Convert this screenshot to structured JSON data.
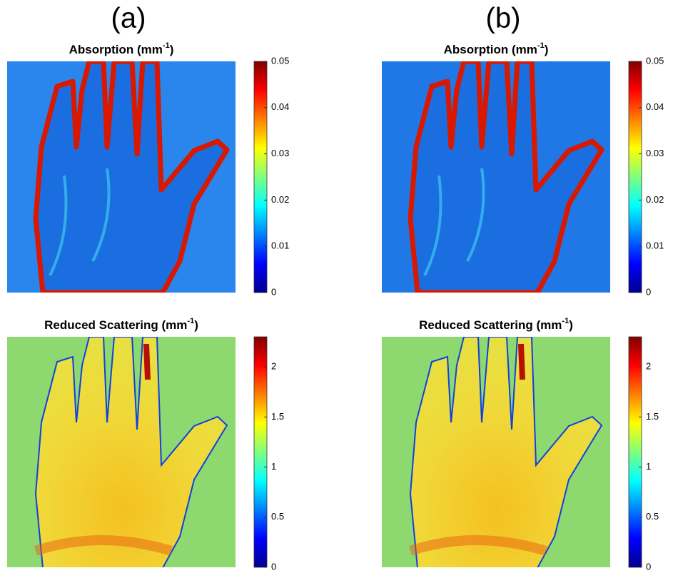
{
  "panels": [
    {
      "label": "(a)",
      "maps": [
        {
          "title": {
            "text": "Absorption (mm",
            "sup": "-1",
            "close": ")"
          },
          "colorbar": {
            "lim": [
              0,
              0.05
            ],
            "ticks": [
              0,
              0.01,
              0.02,
              0.03,
              0.04,
              0.05
            ]
          }
        },
        {
          "title": {
            "text": "Reduced Scattering (mm",
            "sup": "-1",
            "close": ")"
          },
          "colorbar": {
            "lim": [
              0,
              2.3
            ],
            "ticks": [
              0,
              0.5,
              1,
              1.5,
              2
            ]
          }
        }
      ]
    },
    {
      "label": "(b)",
      "maps": [
        {
          "title": {
            "text": "Absorption (mm",
            "sup": "-1",
            "close": ")"
          },
          "colorbar": {
            "lim": [
              0,
              0.05
            ],
            "ticks": [
              0,
              0.01,
              0.02,
              0.03,
              0.04,
              0.05
            ]
          }
        },
        {
          "title": {
            "text": "Reduced Scattering (mm",
            "sup": "-1",
            "close": ")"
          },
          "colorbar": {
            "lim": [
              0,
              2.3
            ],
            "ticks": [
              0,
              0.5,
              1,
              1.5,
              2
            ]
          }
        }
      ]
    }
  ]
}
